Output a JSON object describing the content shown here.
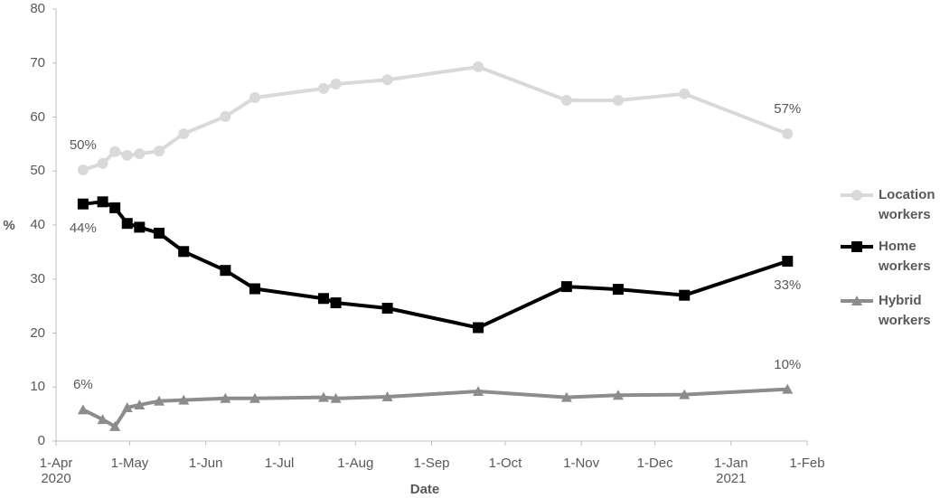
{
  "chart_data": {
    "type": "line",
    "x_label": "Date",
    "y_label": "%",
    "x": [
      "2020-04-12",
      "2020-04-20",
      "2020-04-25",
      "2020-04-30",
      "2020-05-05",
      "2020-05-13",
      "2020-05-23",
      "2020-06-09",
      "2020-06-21",
      "2020-07-19",
      "2020-07-24",
      "2020-08-14",
      "2020-09-20",
      "2020-10-26",
      "2020-11-16",
      "2020-12-13",
      "2021-01-24"
    ],
    "series": [
      {
        "name": "Location workers",
        "color": "#d9d9d9",
        "marker": "circle",
        "values": [
          50.2,
          51.4,
          53.6,
          52.9,
          53.2,
          53.7,
          56.9,
          60.1,
          63.6,
          65.3,
          66.1,
          66.9,
          69.3,
          63.1,
          63.1,
          64.3,
          56.9
        ],
        "value_labels": [
          "50%",
          null,
          null,
          null,
          null,
          null,
          null,
          null,
          null,
          null,
          null,
          null,
          null,
          null,
          null,
          null,
          "57%"
        ]
      },
      {
        "name": "Home workers",
        "color": "#000000",
        "marker": "square",
        "values": [
          43.9,
          44.3,
          43.2,
          40.3,
          39.6,
          38.5,
          35.1,
          31.6,
          28.2,
          26.4,
          25.6,
          24.6,
          21.0,
          28.6,
          28.1,
          27.0,
          33.3
        ],
        "value_labels": [
          "44%",
          null,
          null,
          null,
          null,
          null,
          null,
          null,
          null,
          null,
          null,
          null,
          null,
          null,
          null,
          null,
          "33%"
        ]
      },
      {
        "name": "Hybrid workers",
        "color": "#8c8c8c",
        "marker": "triangle",
        "values": [
          5.8,
          4.0,
          2.7,
          6.2,
          6.7,
          7.4,
          7.6,
          7.9,
          7.9,
          8.1,
          7.9,
          8.2,
          9.2,
          8.1,
          8.5,
          8.6,
          9.6
        ],
        "value_labels": [
          "6%",
          null,
          null,
          null,
          null,
          null,
          null,
          null,
          null,
          null,
          null,
          null,
          null,
          null,
          null,
          null,
          "10%"
        ]
      }
    ],
    "xlim": [
      "2020-04-01",
      "2021-02-01"
    ],
    "xticks": [
      {
        "value": "2020-04-01",
        "label": "1-Apr\n2020"
      },
      {
        "value": "2020-05-01",
        "label": "1-May"
      },
      {
        "value": "2020-06-01",
        "label": "1-Jun"
      },
      {
        "value": "2020-07-01",
        "label": "1-Jul"
      },
      {
        "value": "2020-08-01",
        "label": "1-Aug"
      },
      {
        "value": "2020-09-01",
        "label": "1-Sep"
      },
      {
        "value": "2020-10-01",
        "label": "1-Oct"
      },
      {
        "value": "2020-11-01",
        "label": "1-Nov"
      },
      {
        "value": "2020-12-01",
        "label": "1-Dec"
      },
      {
        "value": "2021-01-01",
        "label": "1-Jan\n2021"
      },
      {
        "value": "2021-02-01",
        "label": "1-Feb"
      }
    ],
    "ylim": [
      0,
      80
    ],
    "yticks": [
      0,
      10,
      20,
      30,
      40,
      50,
      60,
      70,
      80
    ],
    "grid": false,
    "legend": "right"
  }
}
